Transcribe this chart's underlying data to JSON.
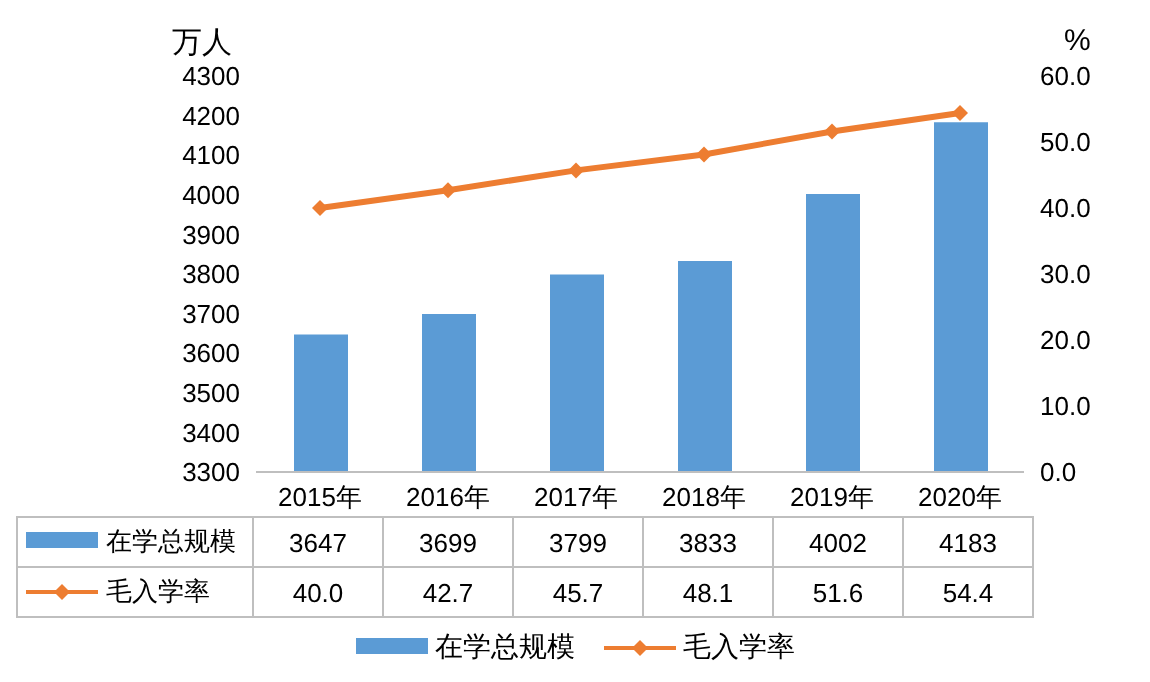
{
  "chart_data": {
    "type": "bar",
    "ylabel": "万人",
    "y2label": "%",
    "categories": [
      "2015年",
      "2016年",
      "2017年",
      "2018年",
      "2019年",
      "2020年"
    ],
    "series": [
      {
        "name": "在学总规模",
        "color": "#5b9bd5",
        "values": [
          3647,
          3699,
          3799,
          3833,
          4002,
          4183
        ],
        "value_labels": [
          "3647",
          "3699",
          "3799",
          "3833",
          "4002",
          "4183"
        ]
      },
      {
        "name": "毛入学率",
        "type": "line",
        "axis": "y2",
        "color": "#ed7d31",
        "marker": "diamond",
        "values": [
          40.0,
          42.7,
          45.7,
          48.1,
          51.6,
          54.4
        ],
        "value_labels": [
          "40.0",
          "42.7",
          "45.7",
          "48.1",
          "51.6",
          "54.4"
        ]
      }
    ],
    "ylim": [
      3300,
      4300
    ],
    "yticks": [
      3300,
      3400,
      3500,
      3600,
      3700,
      3800,
      3900,
      4000,
      4100,
      4200,
      4300
    ],
    "y2lim": [
      0,
      60
    ],
    "y2ticks": [
      {
        "value": 0,
        "label": "0.0"
      },
      {
        "value": 10,
        "label": "10.0"
      },
      {
        "value": 20,
        "label": "20.0"
      },
      {
        "value": 30,
        "label": "30.0"
      },
      {
        "value": 40,
        "label": "40.0"
      },
      {
        "value": 50,
        "label": "50.0"
      },
      {
        "value": 60,
        "label": "60.0"
      }
    ],
    "legend": "bottom"
  }
}
